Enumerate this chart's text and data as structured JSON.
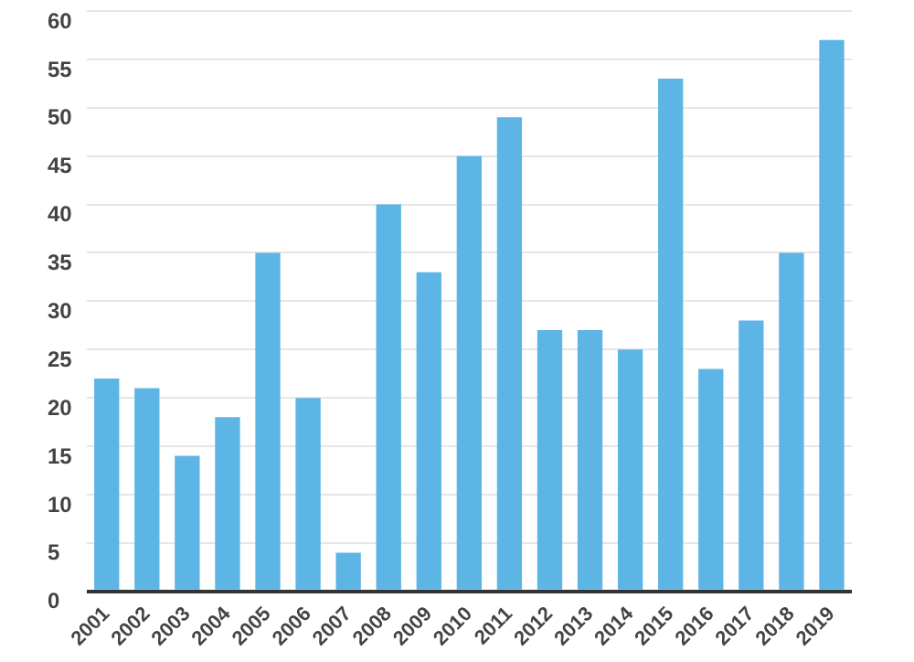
{
  "chart_data": {
    "type": "bar",
    "categories": [
      "2001",
      "2002",
      "2003",
      "2004",
      "2005",
      "2006",
      "2007",
      "2008",
      "2009",
      "2010",
      "2011",
      "2012",
      "2013",
      "2014",
      "2015",
      "2016",
      "2017",
      "2018",
      "2019"
    ],
    "values": [
      22,
      21,
      14,
      18,
      35,
      20,
      4,
      40,
      33,
      45,
      49,
      27,
      27,
      25,
      53,
      23,
      28,
      35,
      57
    ],
    "color": "#5db5e6",
    "ylim": [
      0,
      60
    ],
    "yticks": [
      0,
      5,
      10,
      15,
      20,
      25,
      30,
      35,
      40,
      45,
      50,
      55,
      60
    ],
    "grid": "y"
  }
}
